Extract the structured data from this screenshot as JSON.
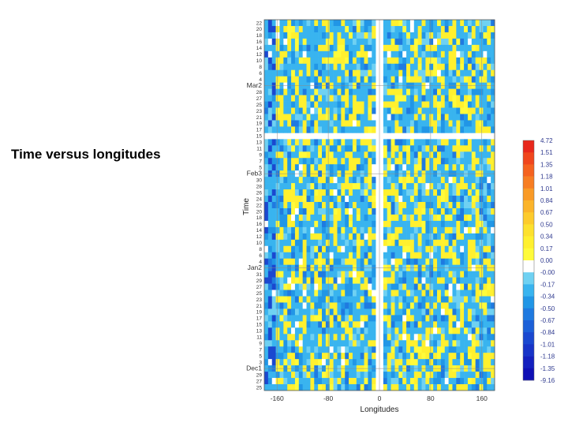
{
  "slide": {
    "title": "Time versus longitudes"
  },
  "chart_data": {
    "type": "heatmap",
    "title": "",
    "xlabel": "Longitudes",
    "ylabel": "Time",
    "xlim": [
      -180,
      180
    ],
    "x_ticks": [
      "-160",
      "-80",
      "0",
      "80",
      "160"
    ],
    "x_tick_values": [
      -160,
      -80,
      0,
      80,
      160
    ],
    "y_tick_labels": [
      "22",
      "20",
      "18",
      "16",
      "14",
      "12",
      "10",
      "8",
      "6",
      "4",
      "Mar2",
      "28",
      "27",
      "25",
      "23",
      "21",
      "19",
      "17",
      "15",
      "13",
      "11",
      "9",
      "7",
      "5",
      "Feb3",
      "30",
      "28",
      "26",
      "24",
      "22",
      "20",
      "18",
      "16",
      "14",
      "12",
      "10",
      "8",
      "6",
      "4",
      "Jan2",
      "31",
      "29",
      "27",
      "25",
      "23",
      "21",
      "19",
      "17",
      "15",
      "13",
      "11",
      "9",
      "7",
      "5",
      "3",
      "Dec1",
      "29",
      "27",
      "25"
    ],
    "month_labels": [
      "Mar",
      "Feb",
      "Jan",
      "Dec"
    ],
    "missing_time_row": "15",
    "missing_longitude_band": [
      -5,
      5
    ],
    "colorbar": {
      "labels": [
        "4.72",
        "1.51",
        "1.35",
        "1.18",
        "1.01",
        "0.84",
        "0.67",
        "0.50",
        "0.34",
        "0.17",
        "0.00",
        "-0.00",
        "-0.17",
        "-0.34",
        "-0.50",
        "-0.67",
        "-0.84",
        "-1.01",
        "-1.18",
        "-1.35",
        "-9.16"
      ],
      "colors": [
        "#e8281c",
        "#f0461d",
        "#f5621f",
        "#f77d22",
        "#f99a26",
        "#fbb42a",
        "#fdcb2c",
        "#fde12e",
        "#fff02f",
        "#fffb3a",
        "#ffffff",
        "#6fd1f2",
        "#39b4ef",
        "#2196e6",
        "#1f7ae0",
        "#1c60d8",
        "#1a48d0",
        "#1834c8",
        "#1420bf",
        "#0f10b5"
      ]
    }
  }
}
